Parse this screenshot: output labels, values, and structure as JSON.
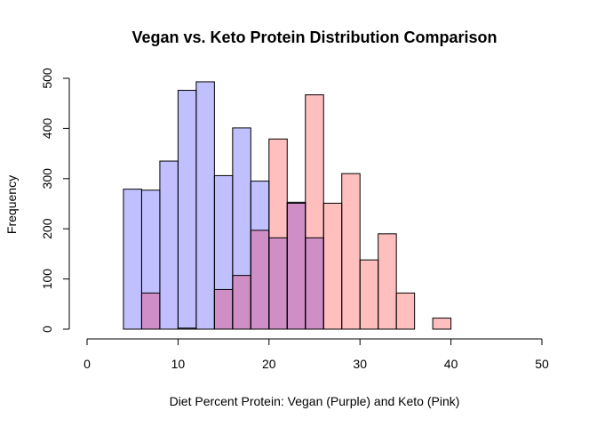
{
  "chart_data": {
    "type": "bar",
    "subtype": "overlapping-histogram",
    "title": "Vegan vs. Keto Protein Distribution Comparison",
    "xlabel": "Diet Percent Protein: Vegan (Purple) and Keto (Pink)",
    "ylabel": "Frequency",
    "xlim": [
      0,
      50
    ],
    "ylim": [
      0,
      500
    ],
    "x_ticks": [
      0,
      10,
      20,
      30,
      40,
      50
    ],
    "y_ticks": [
      0,
      100,
      200,
      300,
      400,
      500
    ],
    "bin_width": 2,
    "grid": false,
    "legend": "none",
    "series": [
      {
        "color": "#c0c0ff",
        "bins": [
          {
            "start": 4,
            "value": 279
          },
          {
            "start": 6,
            "value": 277
          },
          {
            "start": 8,
            "value": 335
          },
          {
            "start": 10,
            "value": 476
          },
          {
            "start": 12,
            "value": 493
          },
          {
            "start": 14,
            "value": 306
          },
          {
            "start": 16,
            "value": 401
          },
          {
            "start": 18,
            "value": 295
          },
          {
            "start": 20,
            "value": 182
          },
          {
            "start": 22,
            "value": 253
          },
          {
            "start": 24,
            "value": 182
          }
        ]
      },
      {
        "color": "#ffbfbf",
        "bins": [
          {
            "start": 6,
            "value": 72
          },
          {
            "start": 8,
            "value": 0
          },
          {
            "start": 10,
            "value": 2
          },
          {
            "start": 12,
            "value": 0
          },
          {
            "start": 14,
            "value": 79
          },
          {
            "start": 16,
            "value": 107
          },
          {
            "start": 18,
            "value": 197
          },
          {
            "start": 20,
            "value": 379
          },
          {
            "start": 22,
            "value": 251
          },
          {
            "start": 24,
            "value": 467
          },
          {
            "start": 26,
            "value": 251
          },
          {
            "start": 28,
            "value": 310
          },
          {
            "start": 30,
            "value": 138
          },
          {
            "start": 32,
            "value": 190
          },
          {
            "start": 34,
            "value": 72
          },
          {
            "start": 36,
            "value": 0
          },
          {
            "start": 38,
            "value": 22
          }
        ]
      }
    ],
    "overlap_color": "#cf8fc6"
  }
}
